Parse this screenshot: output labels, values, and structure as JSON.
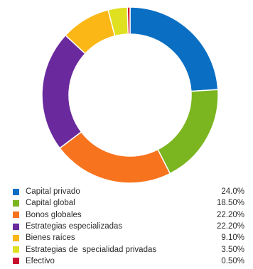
{
  "chart_data": {
    "type": "pie",
    "variant": "donut",
    "legend_position": "bottom",
    "categories": [
      "Capital privado",
      "Capital global",
      "Bonos globales",
      "Estrategias especializadas",
      "Bienes raíces",
      "Estrategias de  specialidad privadas",
      "Efectivo"
    ],
    "values": [
      24.0,
      18.5,
      22.2,
      22.2,
      9.1,
      3.5,
      0.5
    ],
    "value_labels": [
      "24.0%",
      "18.50%",
      "22.20%",
      "22.20%",
      "9.10%",
      "3.50%",
      "0.50%"
    ],
    "colors": [
      "#0a6fc2",
      "#7bb51f",
      "#f7731e",
      "#6a2a9e",
      "#fbb716",
      "#dfe01f",
      "#c8102e"
    ]
  }
}
